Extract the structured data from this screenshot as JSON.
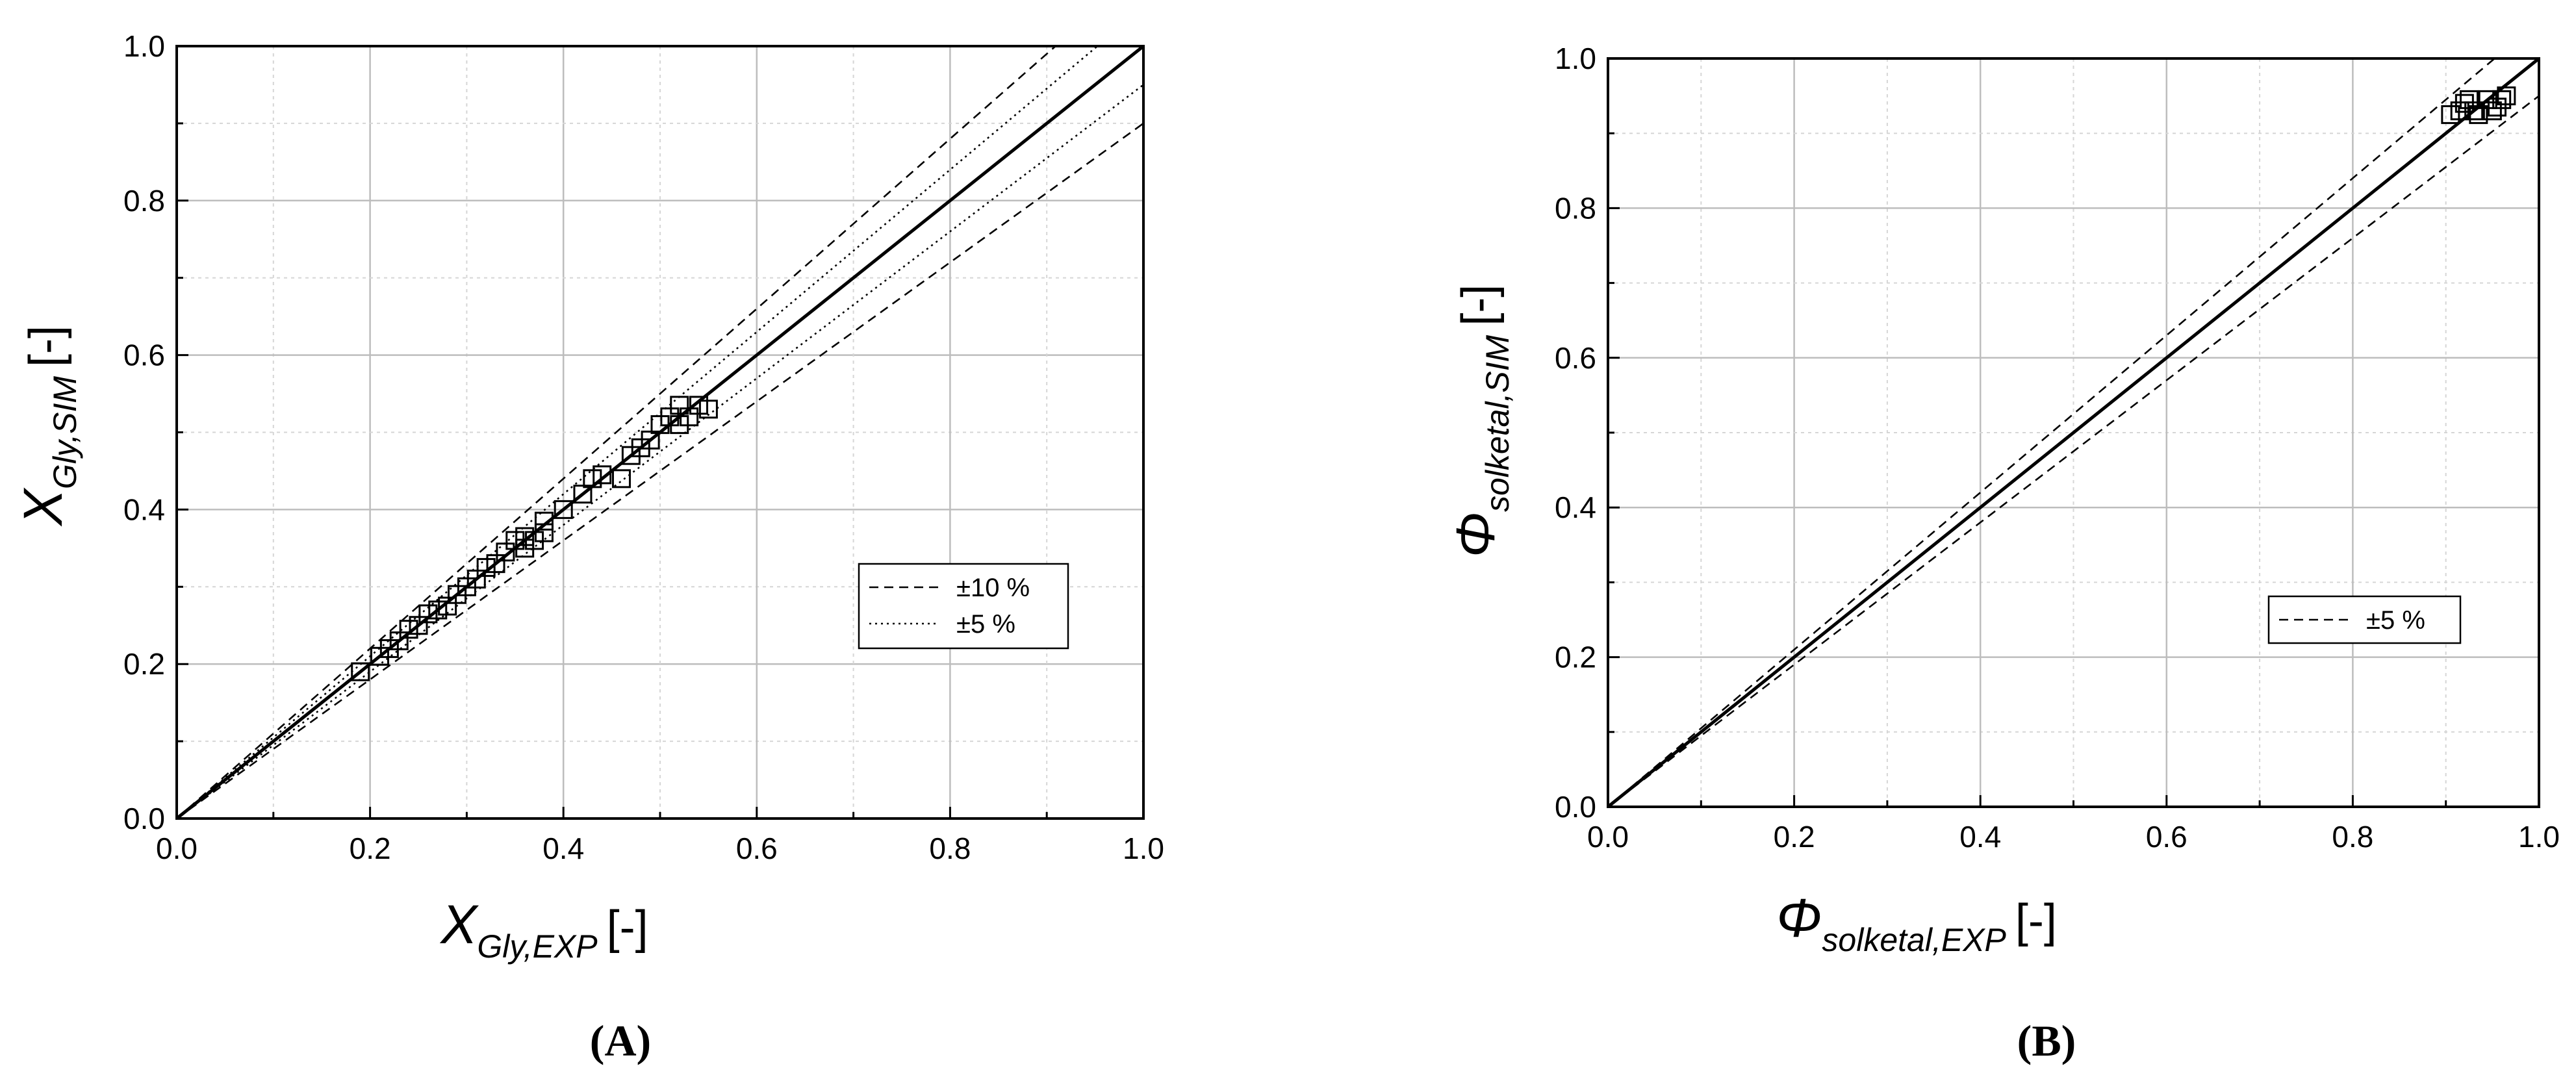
{
  "chart_data": [
    {
      "type": "scatter",
      "panel_label": "(A)",
      "xlabel": {
        "main": "X",
        "sub": "Gly,EXP",
        "unit": "[-]"
      },
      "ylabel": {
        "main": "X",
        "sub": "Gly,SIM",
        "unit": "[-]"
      },
      "xlim": [
        0,
        1
      ],
      "ylim": [
        0,
        1
      ],
      "x_ticks": [
        "0.0",
        "0.2",
        "0.4",
        "0.6",
        "0.8",
        "1.0"
      ],
      "y_ticks": [
        "0.0",
        "0.2",
        "0.4",
        "0.6",
        "0.8",
        "1.0"
      ],
      "grid": true,
      "legend_position": "right-middle",
      "legend": [
        {
          "label": "±10 %",
          "style": "dashed"
        },
        {
          "label": "±5 %",
          "style": "dotted"
        }
      ],
      "reference_lines": [
        {
          "slope": 1.0,
          "style": "solid"
        },
        {
          "slope": 1.1,
          "style": "dashed"
        },
        {
          "slope": 0.9,
          "style": "dashed"
        },
        {
          "slope": 1.05,
          "style": "dotted"
        },
        {
          "slope": 0.95,
          "style": "dotted"
        }
      ],
      "marker": "open-square",
      "points": [
        [
          0.19,
          0.19
        ],
        [
          0.21,
          0.21
        ],
        [
          0.22,
          0.22
        ],
        [
          0.23,
          0.23
        ],
        [
          0.24,
          0.245
        ],
        [
          0.25,
          0.25
        ],
        [
          0.26,
          0.265
        ],
        [
          0.27,
          0.27
        ],
        [
          0.28,
          0.275
        ],
        [
          0.29,
          0.29
        ],
        [
          0.3,
          0.3
        ],
        [
          0.31,
          0.31
        ],
        [
          0.32,
          0.325
        ],
        [
          0.33,
          0.33
        ],
        [
          0.34,
          0.345
        ],
        [
          0.35,
          0.36
        ],
        [
          0.36,
          0.35
        ],
        [
          0.36,
          0.365
        ],
        [
          0.37,
          0.36
        ],
        [
          0.38,
          0.37
        ],
        [
          0.38,
          0.385
        ],
        [
          0.4,
          0.4
        ],
        [
          0.42,
          0.42
        ],
        [
          0.43,
          0.44
        ],
        [
          0.44,
          0.445
        ],
        [
          0.46,
          0.44
        ],
        [
          0.47,
          0.47
        ],
        [
          0.48,
          0.48
        ],
        [
          0.49,
          0.49
        ],
        [
          0.5,
          0.51
        ],
        [
          0.51,
          0.52
        ],
        [
          0.52,
          0.51
        ],
        [
          0.52,
          0.535
        ],
        [
          0.53,
          0.52
        ],
        [
          0.54,
          0.535
        ],
        [
          0.55,
          0.53
        ]
      ]
    },
    {
      "type": "scatter",
      "panel_label": "(B)",
      "xlabel": {
        "main": "Φ",
        "sub": "solketal,EXP",
        "unit": "[-]"
      },
      "ylabel": {
        "main": "Φ",
        "sub": "solketal,SIM",
        "unit": "[-]"
      },
      "xlim": [
        0,
        1
      ],
      "ylim": [
        0,
        1
      ],
      "x_ticks": [
        "0.0",
        "0.2",
        "0.4",
        "0.6",
        "0.8",
        "1.0"
      ],
      "y_ticks": [
        "0.0",
        "0.2",
        "0.4",
        "0.6",
        "0.8",
        "1.0"
      ],
      "grid": true,
      "legend_position": "right-middle",
      "legend": [
        {
          "label": "±5 %",
          "style": "dashed"
        }
      ],
      "reference_lines": [
        {
          "slope": 1.0,
          "style": "solid"
        },
        {
          "slope": 1.05,
          "style": "dashed"
        },
        {
          "slope": 0.95,
          "style": "dashed"
        }
      ],
      "marker": "open-square",
      "points": [
        [
          0.905,
          0.925
        ],
        [
          0.915,
          0.93
        ],
        [
          0.92,
          0.94
        ],
        [
          0.925,
          0.945
        ],
        [
          0.93,
          0.93
        ],
        [
          0.935,
          0.925
        ],
        [
          0.945,
          0.945
        ],
        [
          0.95,
          0.93
        ],
        [
          0.955,
          0.935
        ],
        [
          0.96,
          0.945
        ],
        [
          0.965,
          0.95
        ]
      ]
    }
  ]
}
